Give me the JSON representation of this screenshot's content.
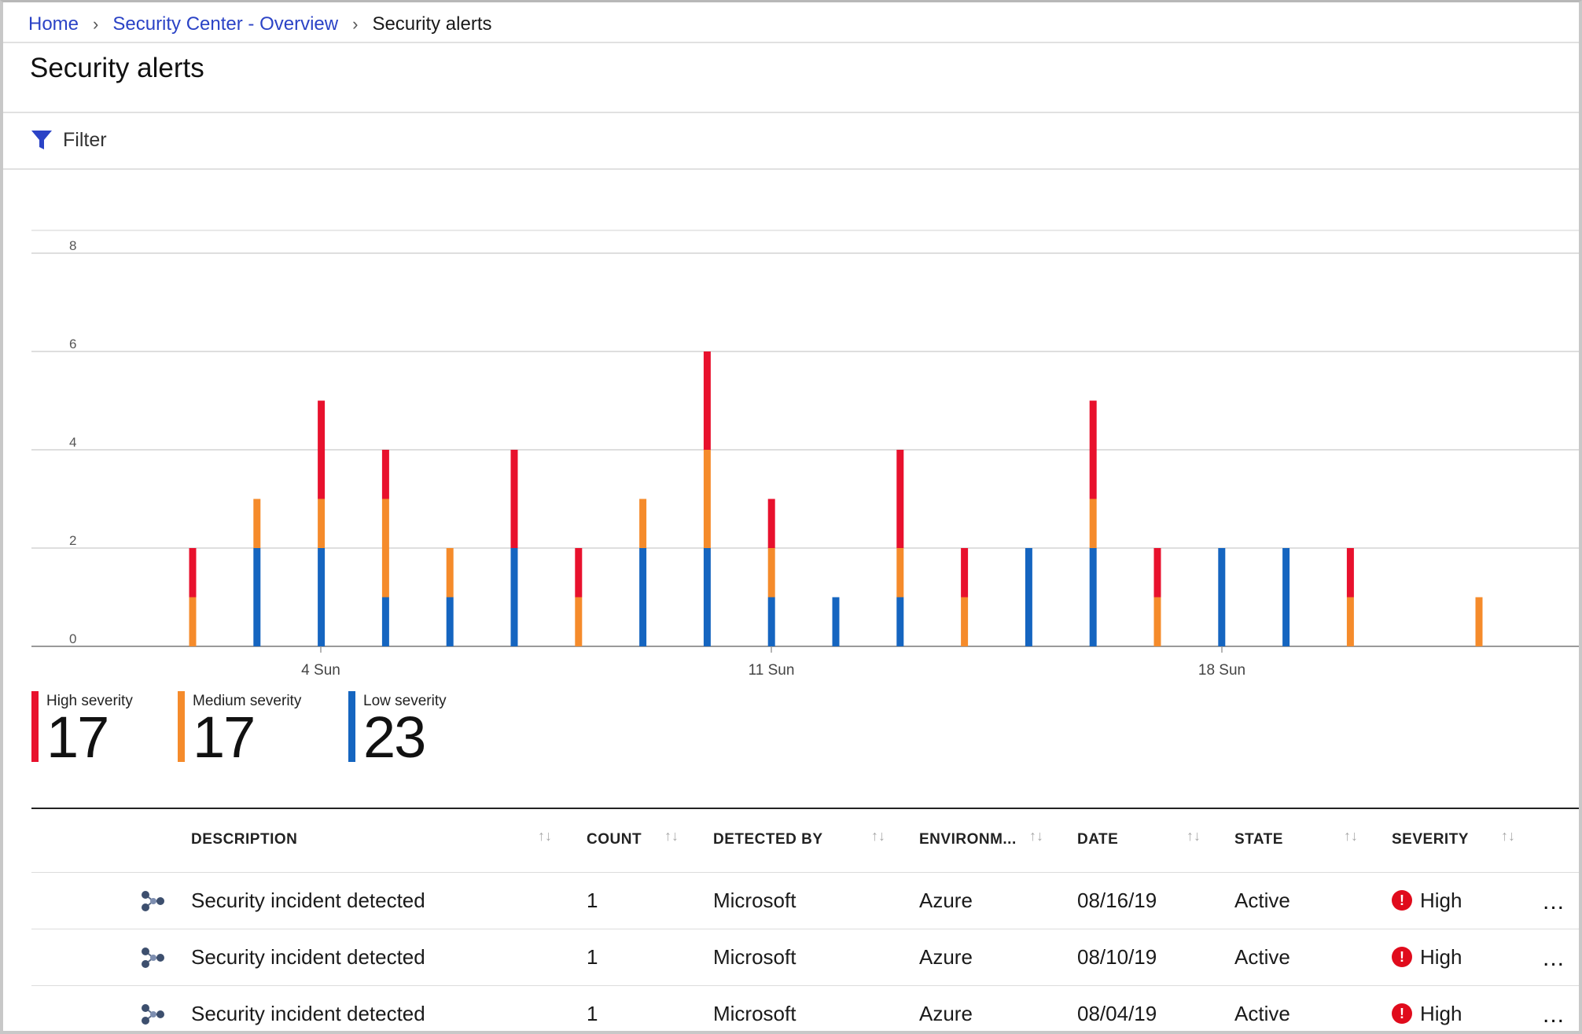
{
  "breadcrumb": {
    "home": "Home",
    "overview": "Security Center - Overview",
    "current": "Security alerts",
    "separator": ">"
  },
  "page": {
    "title": "Security alerts"
  },
  "toolbar": {
    "filter_label": "Filter",
    "filter_icon": "funnel-icon"
  },
  "colors": {
    "high": "#e8112d",
    "medium": "#f58b2b",
    "low": "#1565c0",
    "link": "#2b43c6"
  },
  "chart_data": {
    "type": "bar",
    "stacked": true,
    "y_ticks": [
      "8",
      "6",
      "4",
      "2",
      "0"
    ],
    "ylim": [
      0,
      8
    ],
    "x_tick_labels": [
      "4 Sun",
      "11 Sun",
      "18 Sun"
    ],
    "x_tick_dates": [
      4,
      11,
      18
    ],
    "x": [
      1,
      2,
      3,
      4,
      5,
      6,
      7,
      8,
      9,
      10,
      11,
      12,
      13,
      14,
      15,
      16,
      17,
      18,
      19,
      20,
      21,
      22
    ],
    "series": [
      {
        "name": "Low severity",
        "values": [
          0,
          2,
          2,
          1,
          1,
          2,
          0,
          2,
          2,
          1,
          1,
          1,
          0,
          2,
          2,
          0,
          2,
          2,
          0,
          0,
          0,
          0
        ]
      },
      {
        "name": "Medium severity",
        "values": [
          1,
          1,
          1,
          2,
          1,
          0,
          1,
          1,
          2,
          1,
          0,
          1,
          1,
          0,
          1,
          1,
          0,
          0,
          1,
          0,
          1,
          0
        ]
      },
      {
        "name": "High severity",
        "values": [
          1,
          0,
          2,
          1,
          0,
          2,
          1,
          0,
          2,
          1,
          0,
          2,
          1,
          0,
          2,
          1,
          0,
          0,
          1,
          0,
          0,
          0
        ]
      }
    ],
    "grid": true
  },
  "legend": [
    {
      "label": "High severity",
      "count": "17",
      "color": "#e8112d"
    },
    {
      "label": "Medium severity",
      "count": "17",
      "color": "#f58b2b"
    },
    {
      "label": "Low severity",
      "count": "23",
      "color": "#1565c0"
    }
  ],
  "table": {
    "columns": [
      "DESCRIPTION",
      "COUNT",
      "DETECTED BY",
      "ENVIRONM...",
      "DATE",
      "STATE",
      "SEVERITY"
    ],
    "sort_glyph": "↑↓",
    "more_glyph": "...",
    "rows": [
      {
        "icon": "incident-icon",
        "description": "Security incident detected",
        "count": "1",
        "detected_by": "Microsoft",
        "environment": "Azure",
        "date": "08/16/19",
        "state": "Active",
        "severity": "High"
      },
      {
        "icon": "incident-icon",
        "description": "Security incident detected",
        "count": "1",
        "detected_by": "Microsoft",
        "environment": "Azure",
        "date": "08/10/19",
        "state": "Active",
        "severity": "High"
      },
      {
        "icon": "incident-icon",
        "description": "Security incident detected",
        "count": "1",
        "detected_by": "Microsoft",
        "environment": "Azure",
        "date": "08/04/19",
        "state": "Active",
        "severity": "High"
      }
    ]
  }
}
